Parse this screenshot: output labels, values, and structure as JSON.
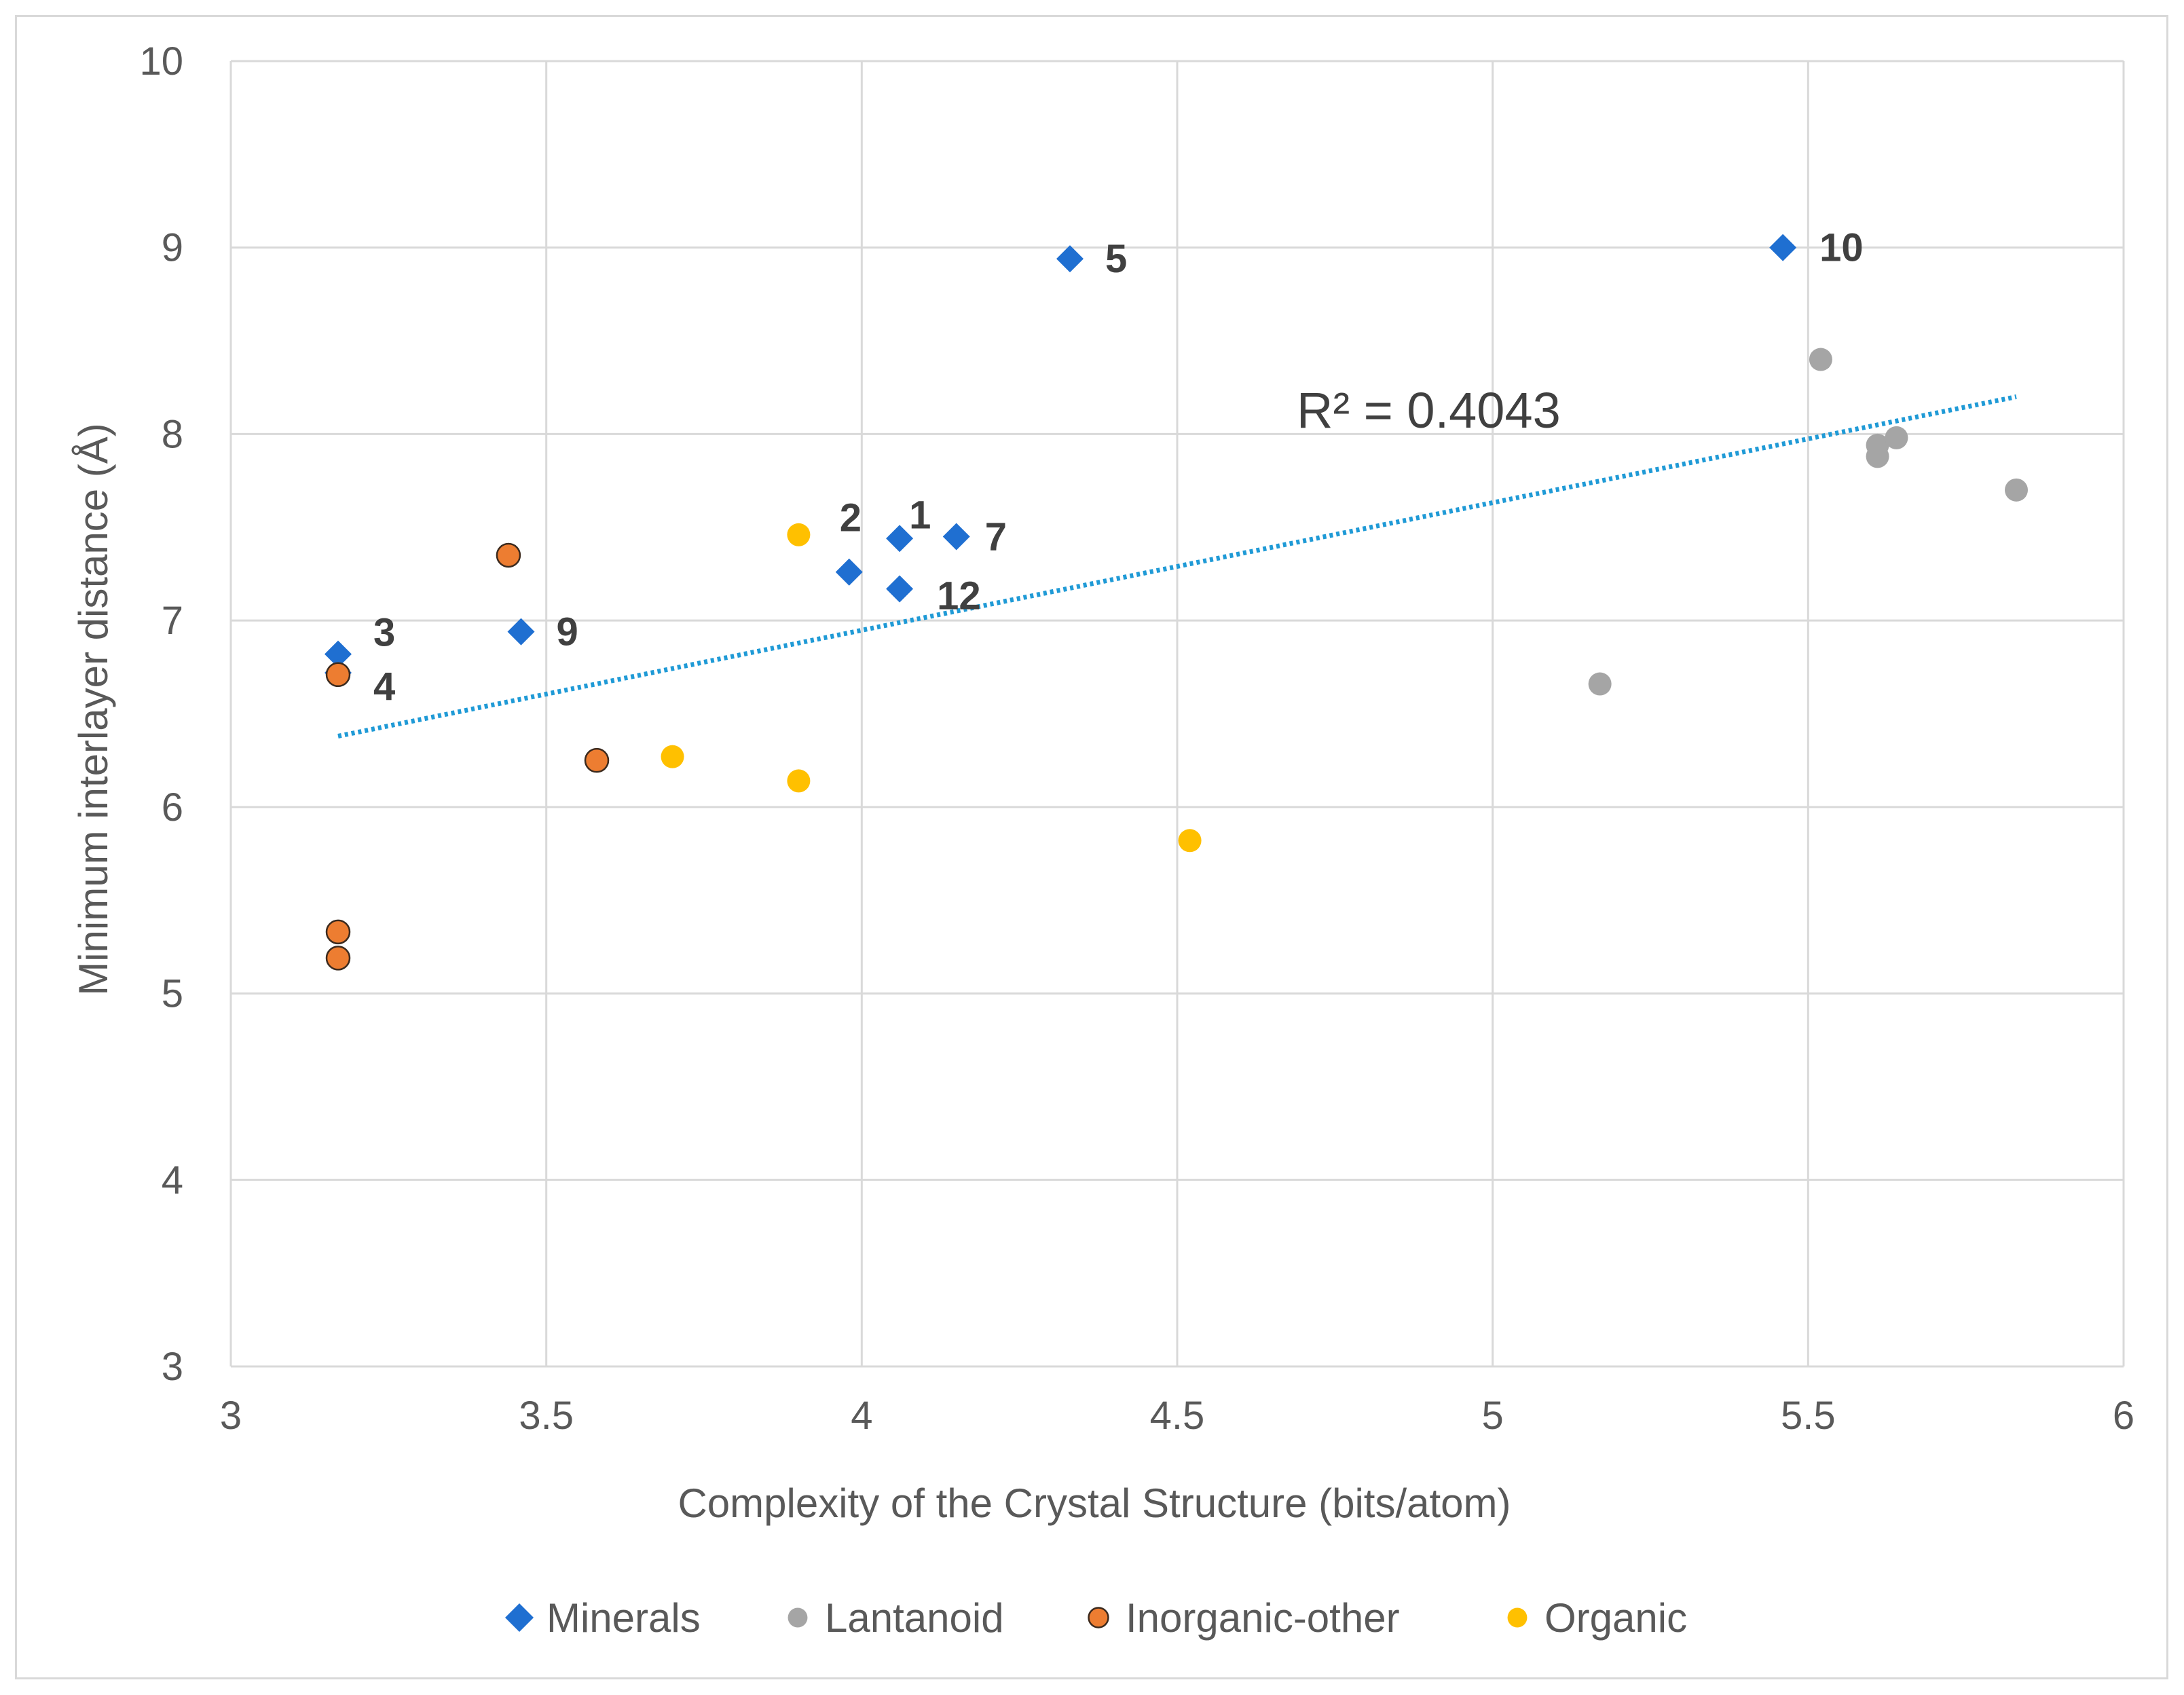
{
  "chart_data": {
    "type": "scatter",
    "title": "",
    "xlabel": "Complexity of the Crystal Structure (bits/atom)",
    "ylabel": "Minimum interlayer distance (Å)",
    "xlim": [
      3,
      6
    ],
    "ylim": [
      3,
      10
    ],
    "xticks": [
      "3",
      "3.5",
      "4",
      "4.5",
      "5",
      "5.5",
      "6"
    ],
    "yticks": [
      "3",
      "4",
      "5",
      "6",
      "7",
      "8",
      "9",
      "10"
    ],
    "grid": true,
    "legend_position": "bottom",
    "series": [
      {
        "name": "Minerals",
        "marker": "diamond",
        "color": "#1f6fd1",
        "points": [
          {
            "x": 3.17,
            "y": 6.82,
            "label": "3"
          },
          {
            "x": 3.17,
            "y": 6.72,
            "label": "4"
          },
          {
            "x": 3.46,
            "y": 6.94,
            "label": "9"
          },
          {
            "x": 3.98,
            "y": 7.26,
            "label": "2"
          },
          {
            "x": 4.06,
            "y": 7.44,
            "label": "1"
          },
          {
            "x": 4.15,
            "y": 7.45,
            "label": "7"
          },
          {
            "x": 4.06,
            "y": 7.17,
            "label": "12"
          },
          {
            "x": 4.33,
            "y": 8.94,
            "label": "5"
          },
          {
            "x": 5.46,
            "y": 9.0,
            "label": "10"
          }
        ]
      },
      {
        "name": "Lantanoid",
        "marker": "circle",
        "color": "#a5a5a5",
        "points": [
          {
            "x": 5.17,
            "y": 6.66
          },
          {
            "x": 5.52,
            "y": 8.4
          },
          {
            "x": 5.61,
            "y": 7.94
          },
          {
            "x": 5.61,
            "y": 7.88
          },
          {
            "x": 5.64,
            "y": 7.98
          },
          {
            "x": 5.83,
            "y": 7.7
          }
        ]
      },
      {
        "name": "Inorganic-other",
        "marker": "circle",
        "color": "#ed7d31",
        "points": [
          {
            "x": 3.17,
            "y": 6.71
          },
          {
            "x": 3.17,
            "y": 5.33
          },
          {
            "x": 3.17,
            "y": 5.19
          },
          {
            "x": 3.44,
            "y": 7.35
          },
          {
            "x": 3.58,
            "y": 6.25
          }
        ]
      },
      {
        "name": "Organic",
        "marker": "circle",
        "color": "#ffc000",
        "points": [
          {
            "x": 3.7,
            "y": 6.27
          },
          {
            "x": 3.9,
            "y": 7.46
          },
          {
            "x": 3.9,
            "y": 6.14
          },
          {
            "x": 4.52,
            "y": 5.82
          }
        ]
      }
    ],
    "trendline": {
      "type": "linear",
      "x_range": [
        3.17,
        5.83
      ],
      "y_start": 6.38,
      "y_end": 8.2,
      "color": "#1f9ad6",
      "annotation": "R² = 0.4043"
    }
  }
}
